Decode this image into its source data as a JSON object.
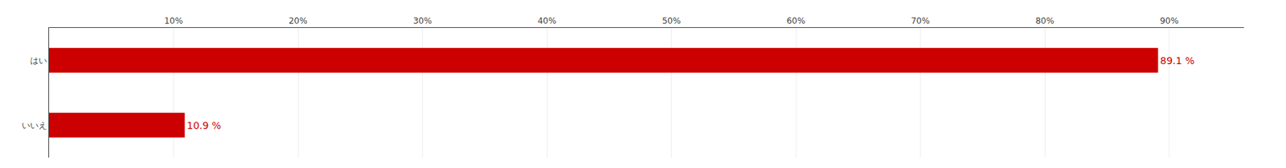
{
  "chart_data": {
    "type": "bar",
    "orientation": "horizontal",
    "categories": [
      "はい",
      "いいえ"
    ],
    "values": [
      89.1,
      10.9
    ],
    "value_labels": [
      "89.1 %",
      "10.9 %"
    ],
    "data_labels": true,
    "color": "#cc0000",
    "xlim": [
      0,
      96
    ],
    "xticks": [
      {
        "value": 10,
        "label": "10%"
      },
      {
        "value": 20,
        "label": "20%"
      },
      {
        "value": 30,
        "label": "30%"
      },
      {
        "value": 40,
        "label": "40%"
      },
      {
        "value": 50,
        "label": "50%"
      },
      {
        "value": 60,
        "label": "60%"
      },
      {
        "value": 70,
        "label": "70%"
      },
      {
        "value": 80,
        "label": "80%"
      },
      {
        "value": 90,
        "label": "90%"
      }
    ],
    "grid": true
  }
}
